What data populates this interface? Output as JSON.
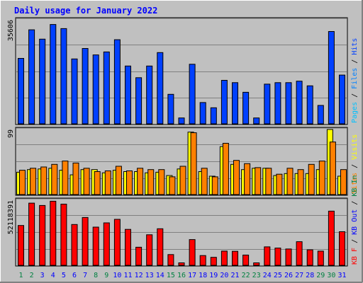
{
  "title": "Daily usage for January 2022",
  "colors": {
    "frame_bg": "#c0c0c0",
    "plot_bg": "#c0c0c0",
    "title_text": "#0000ff",
    "hits": "#0040ff",
    "files": "#0080ff",
    "pages": "#00c0ff",
    "visits": "#ffff00",
    "sites": "#ff8000",
    "kbin": "#008040",
    "kbout": "#0000ff",
    "kbf": "#ff0000",
    "day_weekday": "#0000ff",
    "day_weekend": "#008040"
  },
  "panels": {
    "hits": {
      "ymax_label": "35606",
      "legend": [
        "Hits",
        "Files",
        "Pages"
      ]
    },
    "visits": {
      "ymax_label": "99",
      "legend": [
        "Visits",
        "Sites"
      ]
    },
    "kbytes": {
      "ymax_label": "52118391",
      "legend": [
        "KB In",
        "KB Out",
        "KB F"
      ]
    }
  },
  "chart_data": {
    "type": "bar",
    "title": "Daily usage for January 2022",
    "categories": [
      "1",
      "2",
      "3",
      "4",
      "5",
      "6",
      "7",
      "8",
      "9",
      "10",
      "11",
      "12",
      "13",
      "14",
      "15",
      "16",
      "17",
      "18",
      "19",
      "20",
      "21",
      "22",
      "23",
      "24",
      "25",
      "26",
      "27",
      "28",
      "29",
      "30",
      "31"
    ],
    "weekend_days": [
      1,
      2,
      8,
      9,
      15,
      16,
      22,
      23,
      29,
      30
    ],
    "hits": {
      "ylim": [
        0,
        35606
      ],
      "series": [
        {
          "name": "Hits",
          "values": [
            22400,
            32200,
            29000,
            34000,
            32600,
            22200,
            25800,
            23600,
            24600,
            28800,
            19800,
            15800,
            19800,
            24400,
            10100,
            2000,
            20400,
            7300,
            5500,
            14900,
            14100,
            10800,
            2000,
            13600,
            14100,
            14100,
            14600,
            13000,
            6300,
            31600,
            16700
          ]
        }
      ]
    },
    "visits": {
      "ylim": [
        0,
        99
      ],
      "series": [
        {
          "name": "Visits",
          "values": [
            34,
            38,
            39,
            40,
            37,
            30,
            38,
            38,
            33,
            37,
            35,
            35,
            33,
            34,
            29,
            39,
            95,
            35,
            28,
            73,
            46,
            38,
            40,
            40,
            29,
            32,
            32,
            32,
            38,
            99,
            28
          ]
        },
        {
          "name": "Sites",
          "values": [
            37,
            40,
            42,
            46,
            51,
            48,
            40,
            35,
            36,
            43,
            36,
            40,
            38,
            38,
            27,
            43,
            94,
            40,
            27,
            78,
            52,
            47,
            41,
            40,
            31,
            40,
            38,
            46,
            51,
            80,
            38
          ]
        }
      ]
    },
    "kbytes": {
      "ylim": [
        0,
        52118391
      ],
      "series": [
        {
          "name": "KB F",
          "values": [
            31900000,
            49800000,
            47900000,
            51300000,
            49000000,
            32700000,
            38300000,
            30600000,
            34000000,
            36800000,
            28800000,
            14500000,
            24500000,
            29300000,
            8600000,
            2000000,
            20600000,
            7800000,
            6400000,
            11400000,
            11200000,
            8200000,
            2000000,
            14800000,
            13800000,
            13100000,
            18900000,
            12400000,
            11400000,
            43400000,
            26900000
          ]
        }
      ]
    }
  }
}
